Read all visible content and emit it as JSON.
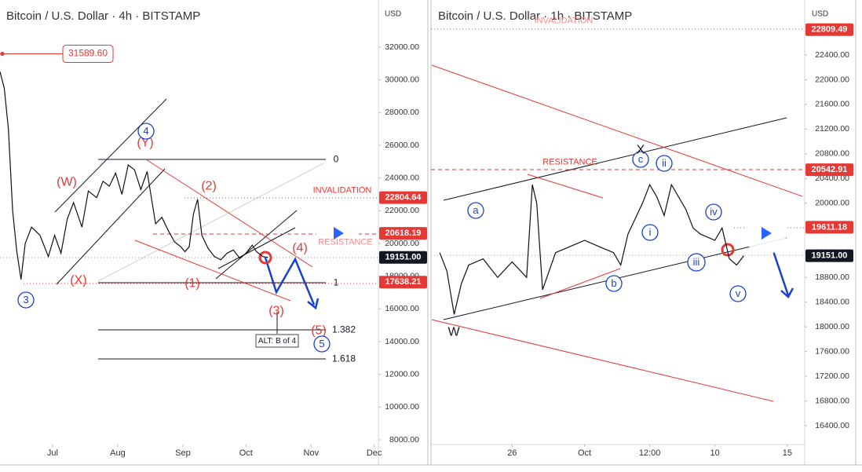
{
  "chart_data": [
    {
      "type": "line",
      "title": "Bitcoin / U.S. Dollar · 4h · BITSTAMP",
      "unit": "USD",
      "color": "#111111",
      "x": [
        157,
        159,
        161,
        163,
        165,
        167,
        169,
        172,
        176,
        180,
        183,
        186,
        189,
        192,
        196,
        199,
        203,
        206,
        209,
        212,
        215,
        218,
        221,
        224,
        227,
        229,
        231,
        234,
        237,
        240,
        243,
        245,
        247,
        249,
        251,
        253,
        256,
        259,
        262,
        265,
        268,
        271,
        274,
        277,
        279,
        282,
        284.5
      ],
      "values": [
        30500,
        29500,
        27000,
        22000,
        19500,
        17800,
        20000,
        21000,
        20500,
        19200,
        20500,
        19400,
        21500,
        22500,
        21000,
        23200,
        22800,
        23800,
        23500,
        24300,
        23000,
        24800,
        24500,
        23300,
        24400,
        22800,
        21200,
        21600,
        20800,
        20100,
        19800,
        19500,
        19800,
        21800,
        22700,
        20500,
        19700,
        19200,
        19000,
        19400,
        19600,
        19100,
        19400,
        19900,
        19500,
        19200,
        19151
      ],
      "xlim": [
        157,
        337
      ],
      "xticks": [
        {
          "value": 182,
          "label": "Jul"
        },
        {
          "value": 213,
          "label": "Aug"
        },
        {
          "value": 244,
          "label": "Sep"
        },
        {
          "value": 274,
          "label": "Oct"
        },
        {
          "value": 305,
          "label": "Nov"
        },
        {
          "value": 335,
          "label": "Dec"
        }
      ],
      "ylim": [
        6560,
        34880
      ],
      "yticks": [
        {
          "value": 8000,
          "label": "8000.00"
        },
        {
          "value": 10000,
          "label": "10000.00"
        },
        {
          "value": 12000,
          "label": "12000.00"
        },
        {
          "value": 14000,
          "label": "14000.00"
        },
        {
          "value": 16000,
          "label": "16000.00"
        },
        {
          "value": 18000,
          "label": "18000.00"
        },
        {
          "value": 20000,
          "label": "20000.00"
        },
        {
          "value": 22000,
          "label": "22000.00"
        },
        {
          "value": 24000,
          "label": "24000.00"
        },
        {
          "value": 26000,
          "label": "26000.00"
        },
        {
          "value": 28000,
          "label": "28000.00"
        },
        {
          "value": 30000,
          "label": "30000.00"
        },
        {
          "value": 32000,
          "label": "32000.00"
        }
      ],
      "price_labels": [
        {
          "value": 22804.64,
          "label": "22804.64",
          "color": "#e53935"
        },
        {
          "value": 20618.19,
          "label": "20618.19",
          "color": "#e53935"
        },
        {
          "value": 19151,
          "label": "19151.00",
          "color": "#131722"
        },
        {
          "value": 17638.21,
          "label": "17638.21",
          "color": "#e53935"
        }
      ],
      "callout": {
        "value": 31589.6,
        "label": "31589.60",
        "color": "#e53935"
      },
      "annotations": [
        {
          "text": "0",
          "color": "#131722"
        },
        {
          "text": "1",
          "color": "#131722"
        },
        {
          "text": "1.382",
          "color": "#131722"
        },
        {
          "text": "1.618",
          "color": "#131722"
        },
        {
          "text": "INVALIDATION",
          "color": "#e53935"
        },
        {
          "text": "RESISTANCE",
          "color": "#f08a8a"
        },
        {
          "text": "(W)",
          "color": "#e53935"
        },
        {
          "text": "(Y)",
          "color": "#e53935"
        },
        {
          "text": "(X)",
          "color": "#e53935"
        },
        {
          "text": "(1)",
          "color": "#e53935"
        },
        {
          "text": "(2)",
          "color": "#e53935"
        },
        {
          "text": "(3)",
          "color": "#e53935"
        },
        {
          "text": "(4)",
          "color": "#e53935"
        },
        {
          "text": "(5)",
          "color": "#e53935"
        },
        {
          "text": "3",
          "color": "#1a3fd1",
          "circle": true
        },
        {
          "text": "4",
          "color": "#1a3fd1",
          "circle": true
        },
        {
          "text": "5",
          "color": "#1a3fd1",
          "circle": true
        },
        {
          "text": "ALT: B of 4",
          "color": "#131722",
          "box": true
        }
      ]
    },
    {
      "type": "line",
      "title": "Bitcoin / U.S. Dollar · 1h · BITSTAMP",
      "unit": "USD",
      "color": "#111111",
      "x": [
        264,
        264.5,
        265,
        265.5,
        266,
        267,
        268,
        269,
        270,
        270.4,
        270.7,
        271.1,
        272,
        273,
        274,
        275,
        276,
        276.5,
        277,
        278,
        278.5,
        279,
        279.5,
        280,
        281,
        281.5,
        282,
        283,
        283.5,
        284,
        284.5,
        285
      ],
      "values": [
        19200,
        18900,
        18200,
        18700,
        19000,
        19100,
        18800,
        19050,
        18800,
        20300,
        20000,
        18600,
        19200,
        19300,
        19400,
        19300,
        19200,
        19000,
        19500,
        20000,
        20300,
        20100,
        19800,
        20300,
        19900,
        19600,
        19500,
        19400,
        19600,
        19100,
        19000,
        19151
      ],
      "xlim": [
        263.4,
        289.2
      ],
      "xticks": [
        {
          "value": 269,
          "label": "26"
        },
        {
          "value": 274,
          "label": "Oct"
        },
        {
          "value": 278.5,
          "label": "12:00"
        },
        {
          "value": 283,
          "label": "10"
        },
        {
          "value": 288,
          "label": "15"
        }
      ],
      "ylim": [
        15790,
        23290
      ],
      "yticks": [
        {
          "value": 16400,
          "label": "16400.00"
        },
        {
          "value": 16800,
          "label": "16800.00"
        },
        {
          "value": 17200,
          "label": "17200.00"
        },
        {
          "value": 17600,
          "label": "17600.00"
        },
        {
          "value": 18000,
          "label": "18000.00"
        },
        {
          "value": 18400,
          "label": "18400.00"
        },
        {
          "value": 18800,
          "label": "18800.00"
        },
        {
          "value": 19200,
          "label": "19200.00"
        },
        {
          "value": 19600,
          "label": "19600.00"
        },
        {
          "value": 20000,
          "label": "20000.00"
        },
        {
          "value": 20400,
          "label": "20400.00"
        },
        {
          "value": 20800,
          "label": "20800.00"
        },
        {
          "value": 21200,
          "label": "21200.00"
        },
        {
          "value": 21600,
          "label": "21600.00"
        },
        {
          "value": 22000,
          "label": "22000.00"
        },
        {
          "value": 22400,
          "label": "22400.00"
        }
      ],
      "price_labels": [
        {
          "value": 22809.49,
          "label": "22809.49",
          "color": "#e53935"
        },
        {
          "value": 20542.91,
          "label": "20542.91",
          "color": "#e53935"
        },
        {
          "value": 19611.18,
          "label": "19611.18",
          "color": "#e53935"
        },
        {
          "value": 19151,
          "label": "19151.00",
          "color": "#131722"
        }
      ],
      "annotations": [
        {
          "text": "INVALIDATION",
          "color": "#f08a8a"
        },
        {
          "text": "RESISTANCE",
          "color": "#e53935"
        },
        {
          "text": "a",
          "color": "#1a3fd1",
          "circle": true
        },
        {
          "text": "b",
          "color": "#1a3fd1",
          "circle": true
        },
        {
          "text": "c",
          "color": "#1a3fd1",
          "circle": true
        },
        {
          "text": "i",
          "color": "#1a3fd1",
          "circle": true
        },
        {
          "text": "ii",
          "color": "#1a3fd1",
          "circle": true
        },
        {
          "text": "iii",
          "color": "#1a3fd1",
          "circle": true
        },
        {
          "text": "iv",
          "color": "#1a3fd1",
          "circle": true
        },
        {
          "text": "v",
          "color": "#1a3fd1",
          "circle": true
        },
        {
          "text": "W",
          "color": "#131722"
        },
        {
          "text": "X",
          "color": "#131722"
        }
      ]
    }
  ]
}
